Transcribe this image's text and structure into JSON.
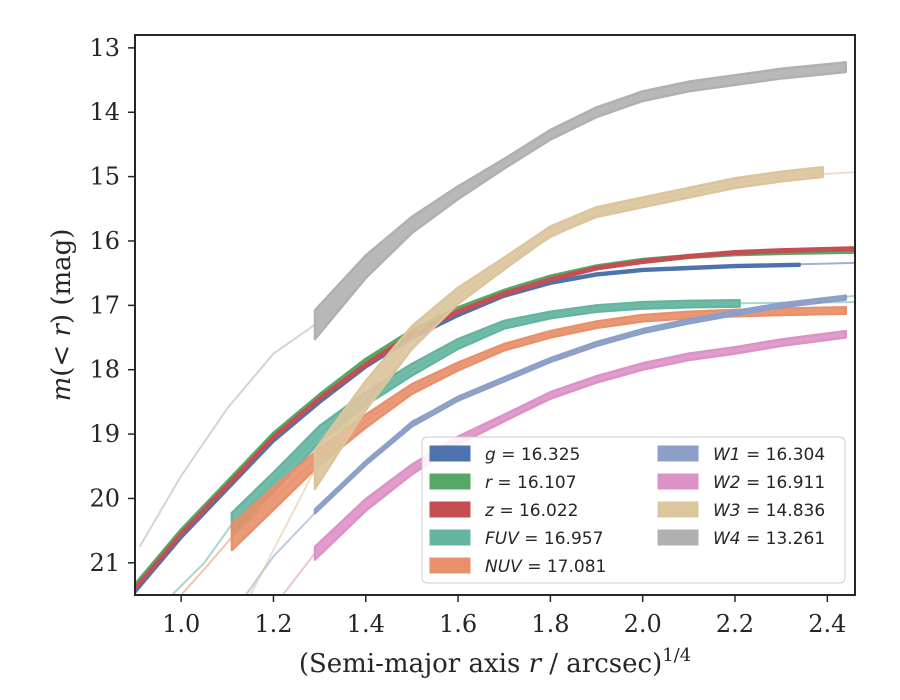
{
  "chart_data": {
    "type": "line",
    "xlabel": "(Semi-major axis r / arcsec)",
    "xlabel_main": "(Semi-major axis ",
    "xlabel_var": "r",
    "xlabel_rest": " / arcsec)",
    "xlabel_exp": "1/4",
    "ylabel": "m(< r) (mag)",
    "ylabel_var": "m",
    "ylabel_inner": "(< ",
    "ylabel_r": "r",
    "ylabel_rest": ") (mag)",
    "xlim": [
      0.9,
      2.46
    ],
    "ylim": [
      21.5,
      12.8
    ],
    "y_inverted": true,
    "xticks": [
      "1.0",
      "1.2",
      "1.4",
      "1.6",
      "1.8",
      "2.0",
      "2.2",
      "2.4"
    ],
    "yticks": [
      "13",
      "14",
      "15",
      "16",
      "17",
      "18",
      "19",
      "20",
      "21"
    ],
    "legend_placement": "lower-right",
    "legend_columns": 2,
    "grid": false,
    "series": [
      {
        "name": "g",
        "value": "16.325",
        "label": "g = 16.325",
        "color": "#4c72b0",
        "thin_x": [
          0.9,
          1.0,
          1.1,
          1.2,
          1.3,
          1.4,
          1.5,
          1.6,
          1.7,
          1.8,
          1.9,
          2.0,
          2.1,
          2.2,
          2.3,
          2.46
        ],
        "thin_y": [
          21.45,
          20.6,
          19.85,
          19.1,
          18.5,
          17.95,
          17.5,
          17.15,
          16.85,
          16.65,
          16.52,
          16.45,
          16.42,
          16.39,
          16.37,
          16.34
        ],
        "band_x": [
          0.9,
          1.0,
          1.1,
          1.2,
          1.3,
          1.4,
          1.5,
          1.6,
          1.7,
          1.8,
          1.9,
          2.0,
          2.1,
          2.2,
          2.34
        ],
        "band_y": [
          21.45,
          20.6,
          19.85,
          19.1,
          18.5,
          17.95,
          17.5,
          17.15,
          16.85,
          16.65,
          16.52,
          16.45,
          16.42,
          16.39,
          16.37
        ],
        "band_w": [
          0.03,
          0.03,
          0.03,
          0.03,
          0.03,
          0.03,
          0.03,
          0.03,
          0.03,
          0.03,
          0.03,
          0.03,
          0.03,
          0.03,
          0.03
        ]
      },
      {
        "name": "r",
        "value": "16.107",
        "label": "r = 16.107",
        "color": "#55a868",
        "thin_x": [
          0.9,
          1.0,
          1.1,
          1.2,
          1.3,
          1.4,
          1.5,
          1.6,
          1.7,
          1.8,
          1.9,
          2.0,
          2.1,
          2.2,
          2.3,
          2.46
        ],
        "thin_y": [
          21.35,
          20.5,
          19.75,
          19.0,
          18.4,
          17.85,
          17.4,
          17.05,
          16.78,
          16.56,
          16.4,
          16.3,
          16.24,
          16.2,
          16.18,
          16.16
        ],
        "band_x": [
          0.9,
          1.0,
          1.1,
          1.2,
          1.3,
          1.4,
          1.5,
          1.6,
          1.7,
          1.8,
          1.9,
          2.0,
          2.1,
          2.2,
          2.3,
          2.46
        ],
        "band_y": [
          21.35,
          20.5,
          19.75,
          19.0,
          18.4,
          17.85,
          17.4,
          17.05,
          16.78,
          16.56,
          16.4,
          16.3,
          16.24,
          16.2,
          16.18,
          16.16
        ],
        "band_w": [
          0.04,
          0.04,
          0.04,
          0.04,
          0.04,
          0.04,
          0.04,
          0.04,
          0.04,
          0.04,
          0.04,
          0.04,
          0.04,
          0.04,
          0.04,
          0.04
        ]
      },
      {
        "name": "z",
        "value": "16.022",
        "label": "z = 16.022",
        "color": "#c44e52",
        "thin_x": [
          0.9,
          1.0,
          1.1,
          1.2,
          1.3,
          1.4,
          1.5,
          1.6,
          1.7,
          1.8,
          1.9,
          2.0,
          2.1,
          2.2,
          2.3,
          2.46
        ],
        "thin_y": [
          21.4,
          20.55,
          19.8,
          19.05,
          18.45,
          17.92,
          17.45,
          17.1,
          16.82,
          16.6,
          16.42,
          16.32,
          16.24,
          16.18,
          16.15,
          16.12
        ],
        "band_x": [
          0.9,
          1.0,
          1.1,
          1.2,
          1.3,
          1.4,
          1.5,
          1.6,
          1.7,
          1.8,
          1.9,
          2.0,
          2.1,
          2.2,
          2.3,
          2.46
        ],
        "band_y": [
          21.4,
          20.55,
          19.8,
          19.05,
          18.45,
          17.92,
          17.45,
          17.1,
          16.82,
          16.6,
          16.42,
          16.32,
          16.24,
          16.18,
          16.15,
          16.12
        ],
        "band_w": [
          0.04,
          0.04,
          0.04,
          0.04,
          0.04,
          0.04,
          0.04,
          0.04,
          0.04,
          0.04,
          0.04,
          0.04,
          0.04,
          0.04,
          0.04,
          0.04
        ]
      },
      {
        "name": "FUV",
        "value": "16.957",
        "label": "FUV = 16.957",
        "color": "#64b5a0",
        "thin_x": [
          0.98,
          1.05,
          1.11,
          1.2,
          1.3,
          1.4,
          1.5,
          1.6,
          1.7,
          1.8,
          1.9,
          2.0,
          2.1,
          2.2,
          2.3,
          2.46
        ],
        "thin_y": [
          21.5,
          21.0,
          20.4,
          19.75,
          19.0,
          18.45,
          18.0,
          17.6,
          17.3,
          17.15,
          17.05,
          17.0,
          16.98,
          16.97,
          16.96,
          16.95
        ],
        "band_x": [
          1.11,
          1.2,
          1.3,
          1.4,
          1.5,
          1.6,
          1.7,
          1.8,
          1.9,
          2.0,
          2.1,
          2.21
        ],
        "band_y": [
          20.4,
          19.75,
          19.0,
          18.45,
          18.0,
          17.6,
          17.3,
          17.15,
          17.05,
          17.0,
          16.98,
          16.97
        ],
        "band_w": [
          0.35,
          0.3,
          0.25,
          0.2,
          0.18,
          0.15,
          0.12,
          0.1,
          0.1,
          0.1,
          0.1,
          0.1
        ]
      },
      {
        "name": "NUV",
        "value": "17.081",
        "label": "NUV = 17.081",
        "color": "#e8906a",
        "thin_x": [
          1.0,
          1.05,
          1.11,
          1.2,
          1.3,
          1.4,
          1.5,
          1.6,
          1.7,
          1.8,
          1.9,
          2.0,
          2.1,
          2.2,
          2.3,
          2.44
        ],
        "thin_y": [
          21.5,
          21.1,
          20.6,
          20.0,
          19.35,
          18.8,
          18.3,
          17.95,
          17.65,
          17.45,
          17.3,
          17.2,
          17.15,
          17.12,
          17.1,
          17.08
        ],
        "band_x": [
          1.11,
          1.2,
          1.3,
          1.4,
          1.5,
          1.6,
          1.7,
          1.8,
          1.9,
          2.0,
          2.1,
          2.2,
          2.3,
          2.44
        ],
        "band_y": [
          20.6,
          20.0,
          19.35,
          18.8,
          18.3,
          17.95,
          17.65,
          17.45,
          17.3,
          17.2,
          17.15,
          17.12,
          17.1,
          17.08
        ],
        "band_w": [
          0.4,
          0.35,
          0.25,
          0.2,
          0.15,
          0.12,
          0.1,
          0.1,
          0.1,
          0.1,
          0.1,
          0.1,
          0.1,
          0.1
        ]
      },
      {
        "name": "W1",
        "value": "16.304",
        "label": "W1 = 16.304",
        "color": "#8c9fc8",
        "thin_x": [
          1.14,
          1.2,
          1.3,
          1.4,
          1.5,
          1.6,
          1.7,
          1.8,
          1.9,
          2.0,
          2.1,
          2.2,
          2.3,
          2.46
        ],
        "thin_y": [
          21.5,
          20.9,
          20.15,
          19.45,
          18.8,
          18.45,
          18.15,
          17.85,
          17.6,
          17.4,
          17.25,
          17.12,
          17.0,
          16.85
        ],
        "band_x": [
          1.29,
          1.4,
          1.5,
          1.6,
          1.7,
          1.8,
          1.9,
          2.0,
          2.1,
          2.2,
          2.3,
          2.44
        ],
        "band_y": [
          20.2,
          19.45,
          18.85,
          18.45,
          18.15,
          17.85,
          17.6,
          17.4,
          17.25,
          17.12,
          17.0,
          16.88
        ],
        "band_w": [
          0.06,
          0.06,
          0.06,
          0.06,
          0.06,
          0.06,
          0.06,
          0.06,
          0.06,
          0.06,
          0.06,
          0.06
        ]
      },
      {
        "name": "W2",
        "value": "16.911",
        "label": "W2 = 16.911",
        "color": "#dd92c6",
        "thin_x": [
          1.22,
          1.29
        ],
        "thin_y": [
          21.5,
          20.85
        ],
        "band_x": [
          1.29,
          1.4,
          1.5,
          1.6,
          1.7,
          1.8,
          1.9,
          2.0,
          2.1,
          2.2,
          2.3,
          2.44
        ],
        "band_y": [
          20.85,
          20.1,
          19.55,
          19.1,
          18.75,
          18.4,
          18.15,
          17.95,
          17.8,
          17.7,
          17.58,
          17.45
        ],
        "band_w": [
          0.2,
          0.18,
          0.15,
          0.12,
          0.1,
          0.1,
          0.1,
          0.1,
          0.1,
          0.1,
          0.1,
          0.1
        ]
      },
      {
        "name": "W3",
        "value": "14.836",
        "label": "W3 = 14.836",
        "color": "#dcc49c",
        "thin_x": [
          1.15,
          1.2,
          1.29,
          1.4,
          1.5,
          1.6,
          1.7,
          1.8,
          1.9,
          2.0,
          2.1,
          2.2,
          2.3,
          2.46
        ],
        "thin_y": [
          21.5,
          20.8,
          19.55,
          18.4,
          17.5,
          16.85,
          16.35,
          15.95,
          15.6,
          15.4,
          15.25,
          15.1,
          15.0,
          14.93
        ],
        "band_x": [
          1.29,
          1.4,
          1.5,
          1.6,
          1.7,
          1.8,
          1.9,
          2.0,
          2.1,
          2.2,
          2.3,
          2.39
        ],
        "band_y": [
          19.55,
          18.4,
          17.5,
          16.85,
          16.35,
          15.85,
          15.55,
          15.4,
          15.25,
          15.1,
          15.0,
          14.93
        ],
        "band_w": [
          0.6,
          0.45,
          0.35,
          0.25,
          0.18,
          0.15,
          0.15,
          0.15,
          0.15,
          0.15,
          0.15,
          0.15
        ]
      },
      {
        "name": "W4",
        "value": "13.261",
        "label": "W4 = 13.261",
        "color": "#b0b0b0",
        "thin_x": [
          0.91,
          1.0,
          1.1,
          1.2,
          1.29
        ],
        "thin_y": [
          20.75,
          19.65,
          18.6,
          17.75,
          17.3
        ],
        "band_x": [
          1.29,
          1.4,
          1.5,
          1.6,
          1.7,
          1.8,
          1.9,
          2.0,
          2.1,
          2.2,
          2.3,
          2.44
        ],
        "band_y": [
          17.3,
          16.4,
          15.75,
          15.25,
          14.8,
          14.35,
          14.0,
          13.75,
          13.6,
          13.5,
          13.4,
          13.3
        ],
        "band_w": [
          0.45,
          0.35,
          0.25,
          0.2,
          0.15,
          0.15,
          0.15,
          0.15,
          0.15,
          0.15,
          0.15,
          0.15
        ]
      }
    ]
  }
}
